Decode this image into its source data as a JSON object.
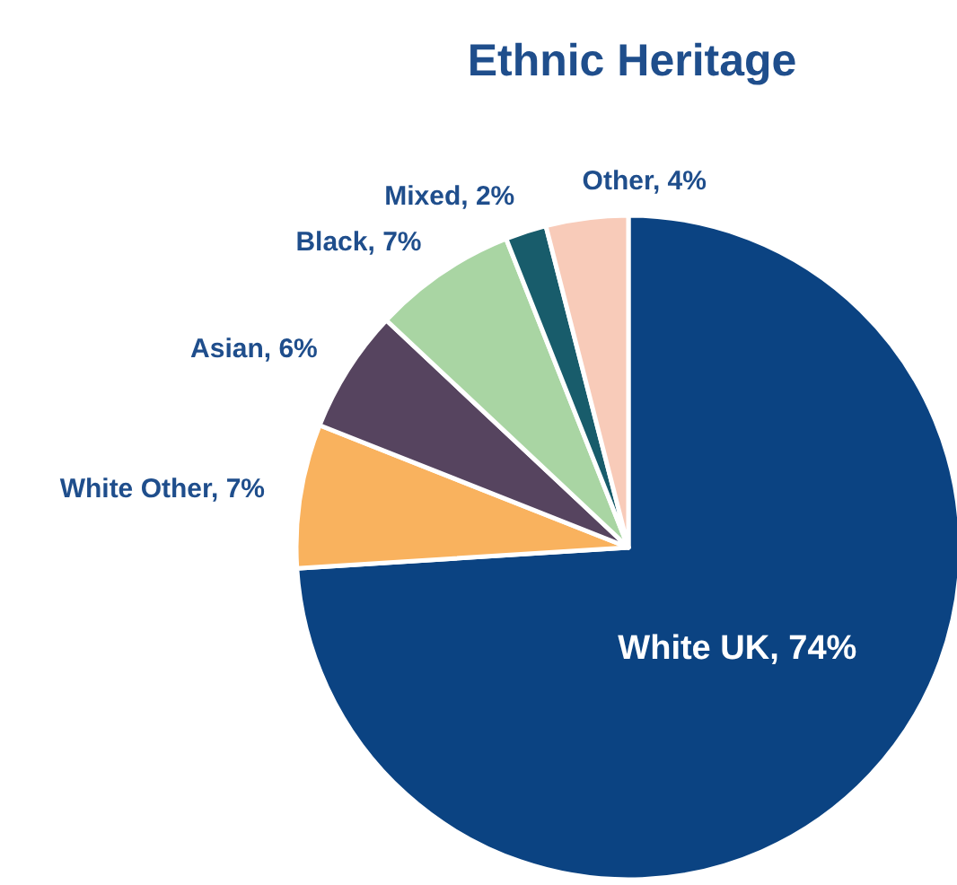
{
  "chart_data": {
    "type": "pie",
    "title": "Ethnic Heritage",
    "categories": [
      "White UK",
      "White Other",
      "Asian",
      "Black",
      "Mixed",
      "Other"
    ],
    "values": [
      74,
      7,
      6,
      7,
      2,
      4
    ],
    "value_labels": [
      "74%",
      "7%",
      "6%",
      "7%",
      "2%",
      "4%"
    ],
    "colors": [
      "#0b4382",
      "#f9b25e",
      "#56445f",
      "#a9d5a3",
      "#185c6b",
      "#f8cbb9"
    ],
    "legend": false
  }
}
